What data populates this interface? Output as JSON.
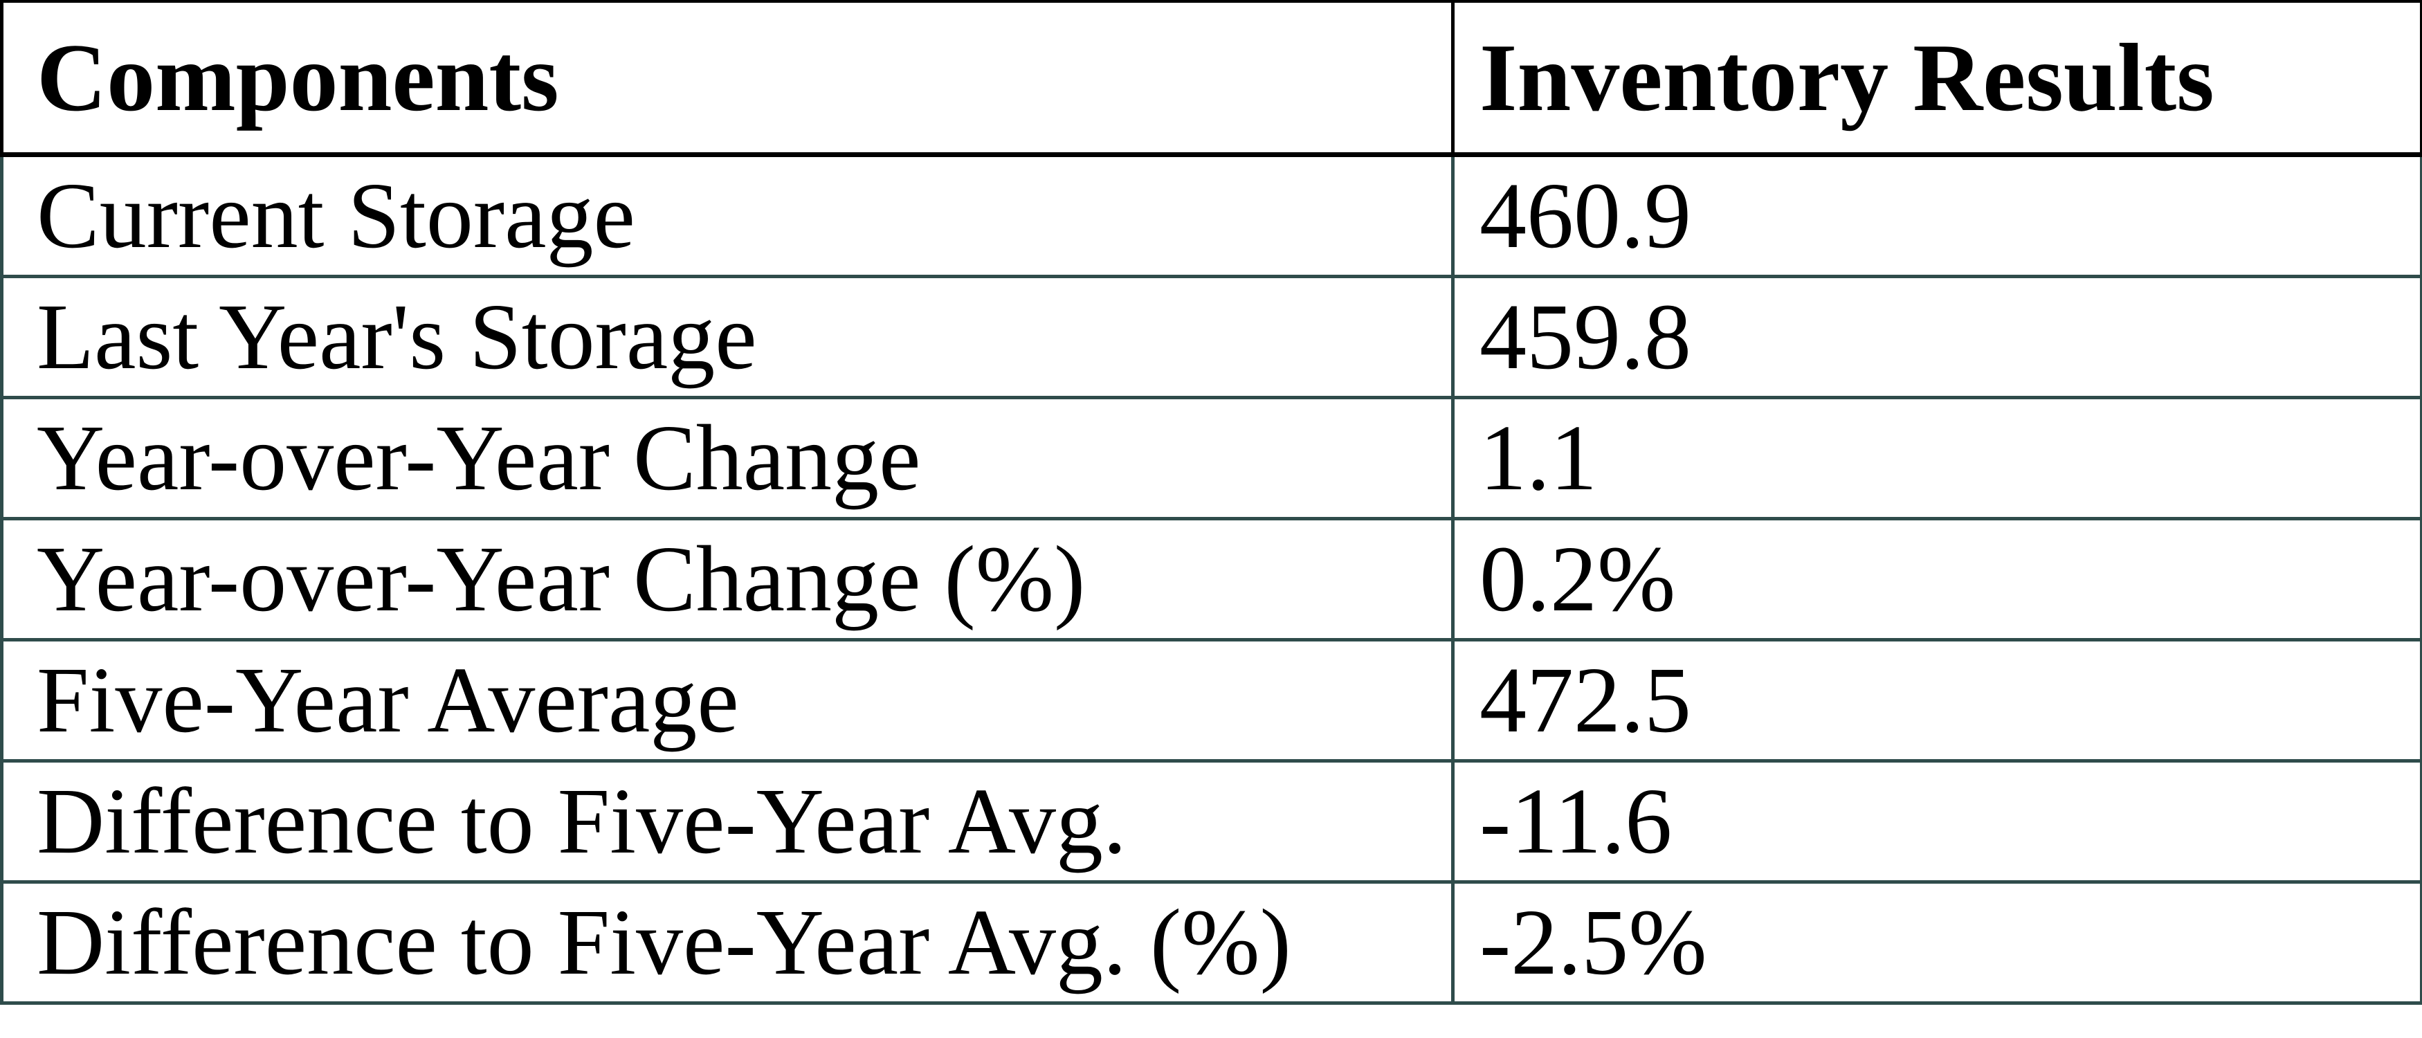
{
  "table": {
    "columns": [
      {
        "label": "Components"
      },
      {
        "label": "Inventory Results"
      }
    ],
    "rows": [
      {
        "label": "Current Storage",
        "value": "460.9"
      },
      {
        "label": "Last Year's Storage",
        "value": "459.8"
      },
      {
        "label": "Year-over-Year Change",
        "value": "1.1"
      },
      {
        "label": "Year-over-Year Change (%)",
        "value": "0.2%"
      },
      {
        "label": "Five-Year Average",
        "value": "472.5"
      },
      {
        "label": "Difference to Five-Year Avg.",
        "value": "-11.6"
      },
      {
        "label": "Difference to Five-Year Avg. (%)",
        "value": "-2.5%"
      }
    ]
  },
  "colors": {
    "header_border": "#000000",
    "body_border": "#2F4C4B",
    "text": "#000000",
    "background": "#FFFFFF"
  },
  "chart_data": {
    "type": "table",
    "columns": [
      "Components",
      "Inventory Results"
    ],
    "rows": [
      [
        "Current Storage",
        "460.9"
      ],
      [
        "Last Year's Storage",
        "459.8"
      ],
      [
        "Year-over-Year Change",
        "1.1"
      ],
      [
        "Year-over-Year Change (%)",
        "0.2%"
      ],
      [
        "Five-Year Average",
        "472.5"
      ],
      [
        "Difference to Five-Year Avg.",
        "-11.6"
      ],
      [
        "Difference to Five-Year Avg. (%)",
        "-2.5%"
      ]
    ]
  }
}
